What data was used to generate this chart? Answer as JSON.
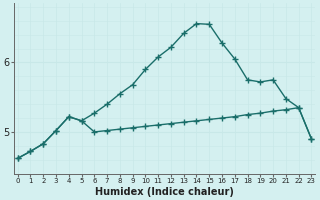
{
  "xlabel": "Humidex (Indice chaleur)",
  "background_color": "#d4f0f0",
  "grid_major_color": "#c8e8e8",
  "grid_minor_color": "#ddf4f4",
  "line_color": "#1a6e6a",
  "curve_peak_x": [
    0,
    1,
    2,
    3,
    4,
    5,
    6,
    7,
    8,
    9,
    10,
    11,
    12,
    13,
    14,
    15,
    16,
    17,
    18,
    19,
    20,
    21,
    22,
    23
  ],
  "curve_peak_y": [
    4.62,
    4.72,
    4.83,
    5.02,
    5.22,
    5.16,
    5.27,
    5.4,
    5.55,
    5.68,
    5.9,
    6.08,
    6.22,
    6.42,
    6.56,
    6.55,
    6.28,
    6.05,
    5.75,
    5.72,
    5.75,
    5.48,
    5.35,
    4.9
  ],
  "curve_flat_x": [
    0,
    1,
    2,
    3,
    4,
    5,
    6,
    7,
    8,
    9,
    10,
    11,
    12,
    13,
    14,
    15,
    16,
    17,
    18,
    19,
    20,
    21,
    22,
    23
  ],
  "curve_flat_y": [
    4.62,
    4.72,
    4.83,
    5.02,
    5.22,
    5.16,
    5.0,
    5.02,
    5.04,
    5.06,
    5.08,
    5.1,
    5.12,
    5.14,
    5.16,
    5.18,
    5.2,
    5.22,
    5.25,
    5.27,
    5.3,
    5.32,
    5.35,
    4.9
  ],
  "yticks": [
    5,
    6
  ],
  "ylim": [
    4.4,
    6.85
  ],
  "xlim": [
    -0.3,
    23.3
  ],
  "xtick_labels": [
    "0",
    "1",
    "2",
    "3",
    "4",
    "5",
    "6",
    "7",
    "8",
    "9",
    "10",
    "11",
    "12",
    "13",
    "14",
    "15",
    "16",
    "17",
    "18",
    "19",
    "20",
    "21",
    "22",
    "23"
  ],
  "marker": "+",
  "markersize": 4,
  "linewidth": 1.0
}
